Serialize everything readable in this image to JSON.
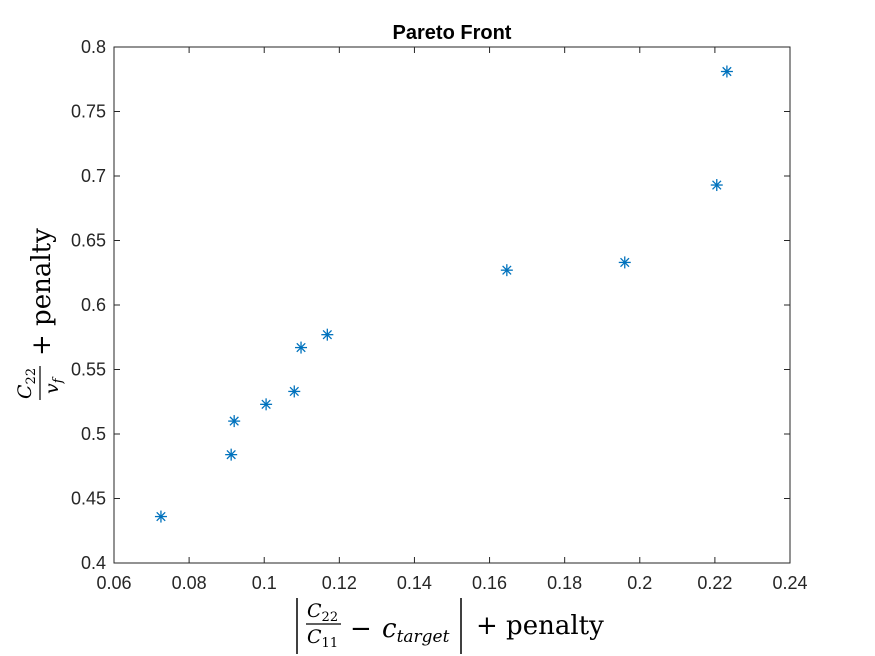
{
  "chart_data": {
    "type": "scatter",
    "title": "Pareto Front",
    "xlim": [
      0.06,
      0.24
    ],
    "ylim": [
      0.4,
      0.8
    ],
    "xticks": [
      "0.06",
      "0.08",
      "0.1",
      "0.12",
      "0.14",
      "0.16",
      "0.18",
      "0.2",
      "0.22",
      "0.24"
    ],
    "yticks": [
      "0.4",
      "0.45",
      "0.5",
      "0.55",
      "0.6",
      "0.65",
      "0.7",
      "0.75",
      "0.8"
    ],
    "grid": false,
    "marker": "asterisk",
    "color": "#0072BD",
    "xlabel": {
      "num": "C",
      "num_sub": "22",
      "den": "C",
      "den_sub": "11",
      "minus": "−",
      "c": "c",
      "c_sub": "target",
      "tail": "+ penalty"
    },
    "ylabel": {
      "num": "C",
      "num_sub": "22",
      "den": "v",
      "den_sub": "f",
      "tail": "+ penalty"
    },
    "points": [
      {
        "x": 0.0725,
        "y": 0.436
      },
      {
        "x": 0.0912,
        "y": 0.484
      },
      {
        "x": 0.092,
        "y": 0.51
      },
      {
        "x": 0.1005,
        "y": 0.523
      },
      {
        "x": 0.108,
        "y": 0.533
      },
      {
        "x": 0.1098,
        "y": 0.567
      },
      {
        "x": 0.1168,
        "y": 0.577
      },
      {
        "x": 0.1646,
        "y": 0.627
      },
      {
        "x": 0.196,
        "y": 0.633
      },
      {
        "x": 0.2205,
        "y": 0.693
      },
      {
        "x": 0.2232,
        "y": 0.781
      }
    ]
  }
}
